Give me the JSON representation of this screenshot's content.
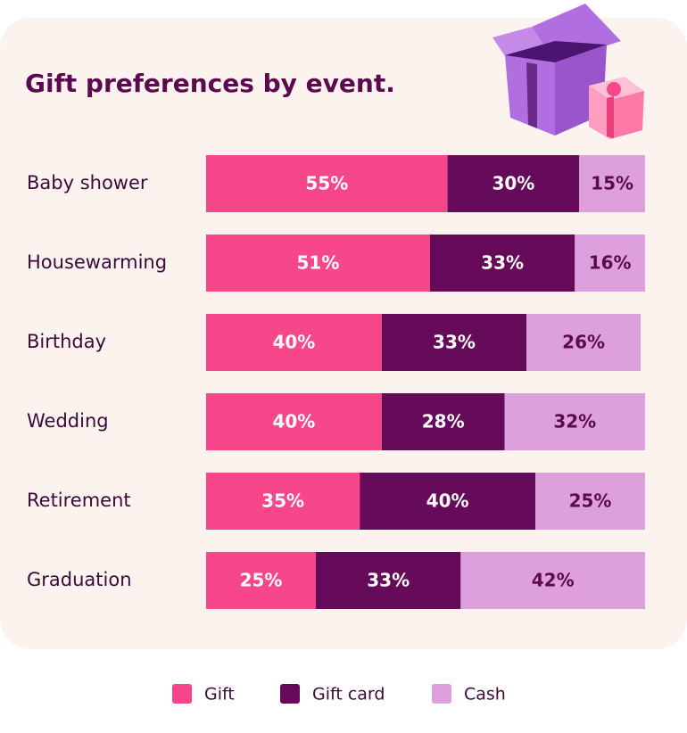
{
  "chart_data": {
    "type": "stacked-bar-horizontal",
    "title": "Gift preferences by event.",
    "categories": [
      "Baby shower",
      "Housewarming",
      "Birthday",
      "Wedding",
      "Retirement",
      "Graduation"
    ],
    "series": [
      {
        "name": "Gift",
        "color": "#f7468a",
        "label_color": "#ffffff",
        "values": [
          55,
          51,
          40,
          40,
          35,
          25
        ],
        "value_labels": [
          "55%",
          "51%",
          "40%",
          "40%",
          "35%",
          "25%"
        ]
      },
      {
        "name": "Gift card",
        "color": "#660a5a",
        "label_color": "#ffffff",
        "values": [
          30,
          33,
          33,
          28,
          40,
          33
        ],
        "value_labels": [
          "30%",
          "33%",
          "33%",
          "28%",
          "40%",
          "33%"
        ]
      },
      {
        "name": "Cash",
        "color": "#dda0dc",
        "label_color": "#5c0a4f",
        "values": [
          15,
          16,
          26,
          32,
          25,
          42
        ],
        "value_labels": [
          "15%",
          "16%",
          "26%",
          "32%",
          "25%",
          "42%"
        ]
      }
    ],
    "xlim": [
      0,
      100
    ],
    "legend": "bottom"
  }
}
